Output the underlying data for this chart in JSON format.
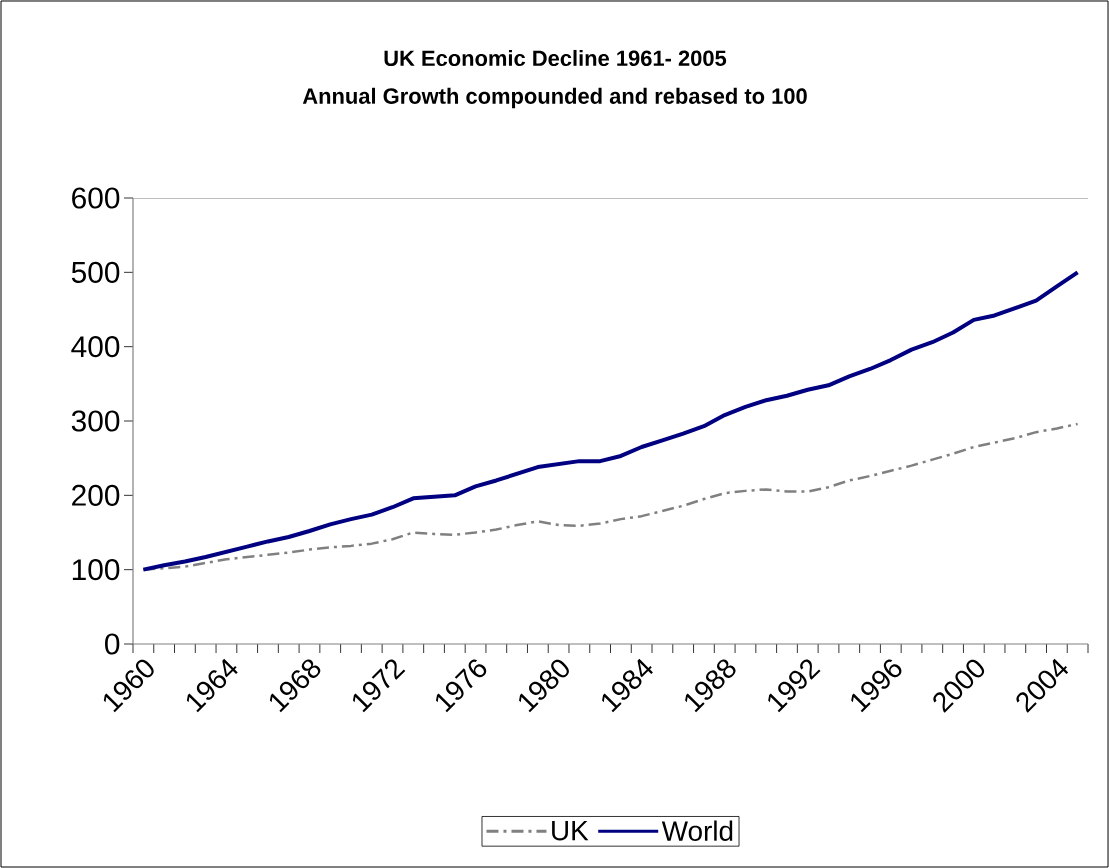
{
  "chart_data": {
    "type": "line",
    "title": "UK Economic Decline 1961- 2005",
    "subtitle": "Annual Growth compounded and rebased to 100",
    "categories": [
      "1960",
      null,
      null,
      null,
      "1964",
      null,
      null,
      null,
      "1968",
      null,
      null,
      null,
      "1972",
      null,
      null,
      null,
      "1976",
      null,
      null,
      null,
      "1980",
      null,
      null,
      null,
      "1984",
      null,
      null,
      null,
      "1988",
      null,
      null,
      null,
      "1992",
      null,
      null,
      null,
      "1996",
      null,
      null,
      null,
      "2000",
      null,
      null,
      null,
      "2004",
      null
    ],
    "series": [
      {
        "name": "UK",
        "color": "#808080",
        "line_style": "dashed",
        "values": [
          100,
          102,
          104,
          109,
          114,
          117,
          120,
          123,
          127,
          130,
          132,
          135,
          141,
          150,
          148,
          147,
          150,
          154,
          160,
          165,
          160,
          159,
          162,
          168,
          172,
          179,
          186,
          195,
          203,
          206,
          208,
          205,
          205,
          211,
          220,
          226,
          233,
          240,
          248,
          256,
          265,
          271,
          277,
          285,
          290,
          296
        ]
      },
      {
        "name": "World",
        "color": "#000080",
        "line_style": "solid",
        "values": [
          100,
          106,
          111,
          117,
          124,
          131,
          138,
          144,
          152,
          161,
          168,
          174,
          184,
          196,
          198,
          200,
          212,
          220,
          229,
          238,
          242,
          246,
          246,
          253,
          265,
          274,
          283,
          293,
          308,
          319,
          328,
          334,
          342,
          348,
          360,
          370,
          382,
          396,
          406,
          419,
          436,
          442,
          452,
          462,
          481,
          500
        ]
      }
    ],
    "ylim": [
      0,
      600
    ],
    "yticks": [
      0,
      100,
      200,
      300,
      400,
      500,
      600
    ],
    "legend": "bottom"
  }
}
